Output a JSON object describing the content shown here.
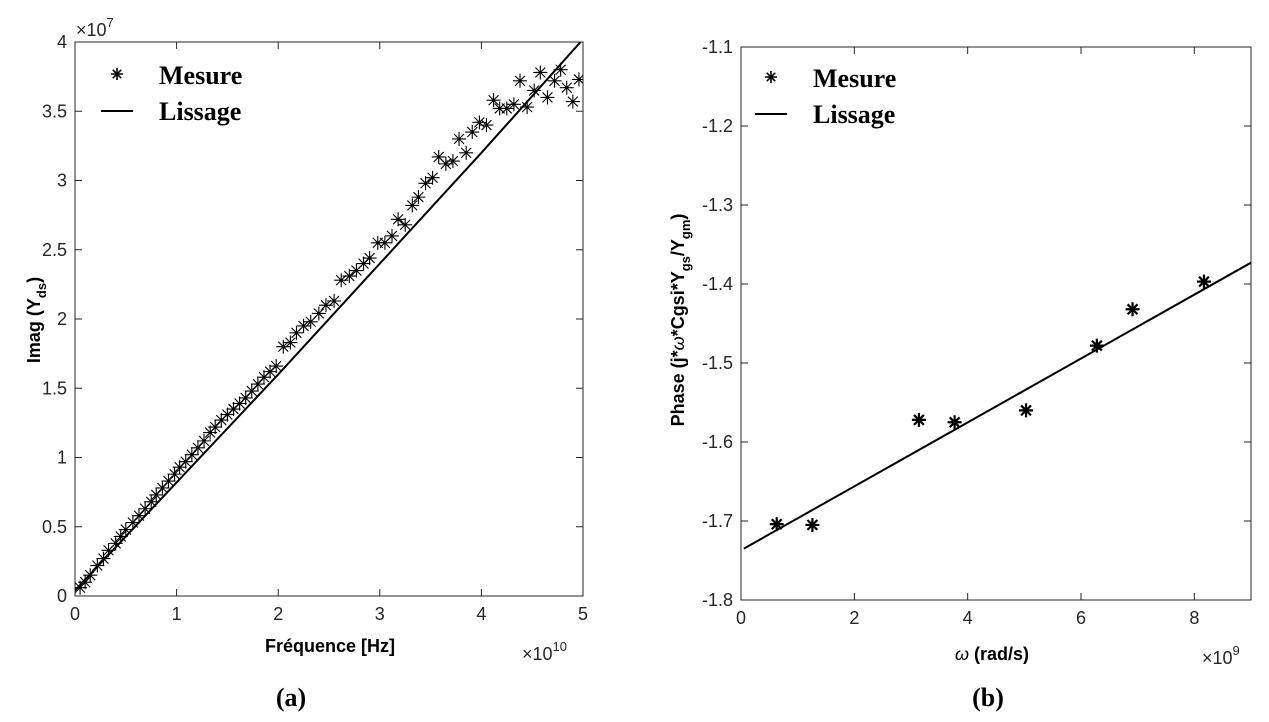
{
  "chart_data": [
    {
      "type": "scatter",
      "panel_label": "(a)",
      "xlabel": "Fréquence    [Hz]",
      "ylabel_main": "Imag (Y",
      "ylabel_sub": "ds",
      "ylabel_end": ")",
      "x_multiplier": {
        "base": "×10",
        "exp": "10"
      },
      "y_multiplier": {
        "base": "×10",
        "exp": "7"
      },
      "xlim": [
        0,
        5
      ],
      "ylim": [
        0,
        4
      ],
      "xticks": [
        0,
        1,
        2,
        3,
        4,
        5
      ],
      "yticks": [
        0,
        0.5,
        1,
        1.5,
        2,
        2.5,
        3,
        3.5,
        4
      ],
      "xtick_labels": [
        "0",
        "1",
        "2",
        "3",
        "4",
        "5"
      ],
      "ytick_labels": [
        "0",
        "0.5",
        "1",
        "1.5",
        "2",
        "2.5",
        "3",
        "3.5",
        "4"
      ],
      "legend": {
        "position": "top-left",
        "entries": [
          "Mesure",
          "Lissage"
        ]
      },
      "series": [
        {
          "name": "Mesure",
          "style": "markers",
          "x": [
            0.05,
            0.1,
            0.15,
            0.22,
            0.28,
            0.33,
            0.4,
            0.45,
            0.5,
            0.57,
            0.63,
            0.69,
            0.75,
            0.8,
            0.86,
            0.92,
            0.98,
            1.03,
            1.09,
            1.15,
            1.21,
            1.27,
            1.33,
            1.38,
            1.44,
            1.5,
            1.56,
            1.62,
            1.68,
            1.74,
            1.8,
            1.86,
            1.92,
            1.98,
            2.05,
            2.12,
            2.18,
            2.25,
            2.32,
            2.4,
            2.47,
            2.55,
            2.62,
            2.7,
            2.77,
            2.84,
            2.9,
            2.98,
            3.05,
            3.12,
            3.18,
            3.25,
            3.32,
            3.38,
            3.45,
            3.52,
            3.58,
            3.65,
            3.72,
            3.78,
            3.85,
            3.91,
            3.98,
            4.05,
            4.12,
            4.18,
            4.25,
            4.32,
            4.38,
            4.45,
            4.52,
            4.58,
            4.65,
            4.72,
            4.78,
            4.84,
            4.9,
            4.96
          ],
          "y": [
            0.06,
            0.1,
            0.15,
            0.22,
            0.27,
            0.33,
            0.38,
            0.43,
            0.48,
            0.53,
            0.58,
            0.63,
            0.68,
            0.73,
            0.78,
            0.83,
            0.88,
            0.93,
            0.97,
            1.02,
            1.07,
            1.12,
            1.18,
            1.22,
            1.27,
            1.31,
            1.35,
            1.39,
            1.43,
            1.48,
            1.53,
            1.58,
            1.62,
            1.66,
            1.8,
            1.83,
            1.9,
            1.95,
            1.98,
            2.04,
            2.1,
            2.13,
            2.28,
            2.31,
            2.35,
            2.4,
            2.44,
            2.55,
            2.55,
            2.6,
            2.72,
            2.68,
            2.82,
            2.88,
            2.98,
            3.02,
            3.17,
            3.12,
            3.14,
            3.3,
            3.2,
            3.35,
            3.42,
            3.4,
            3.58,
            3.52,
            3.52,
            3.55,
            3.72,
            3.53,
            3.65,
            3.78,
            3.6,
            3.72,
            3.8,
            3.67,
            3.57,
            3.73
          ]
        },
        {
          "name": "Lissage",
          "style": "line",
          "x": [
            0,
            1,
            2,
            3,
            4,
            5
          ],
          "y": [
            0.04,
            0.82,
            1.6,
            2.4,
            3.2,
            4.02
          ]
        }
      ]
    },
    {
      "type": "scatter",
      "panel_label": "(b)",
      "xlabel_symbol": "ω",
      "xlabel_rest": " (rad/s)",
      "ylabel_parts": [
        {
          "t": "Phase (j*",
          "sub": false
        },
        {
          "t": "ω",
          "sub": false
        },
        {
          "t": "*Cgsi*Y",
          "sub": false
        },
        {
          "t": "gs",
          "sub": true
        },
        {
          "t": "/Y",
          "sub": false
        },
        {
          "t": "gm",
          "sub": true
        },
        {
          "t": ")",
          "sub": false
        }
      ],
      "x_multiplier": {
        "base": "×10",
        "exp": "9"
      },
      "xlim": [
        0,
        9
      ],
      "ylim": [
        -1.8,
        -1.1
      ],
      "xticks": [
        0,
        2,
        4,
        6,
        8
      ],
      "yticks": [
        -1.8,
        -1.7,
        -1.6,
        -1.5,
        -1.4,
        -1.3,
        -1.2,
        -1.1
      ],
      "xtick_labels": [
        "0",
        "2",
        "4",
        "6",
        "8"
      ],
      "ytick_labels": [
        "-1.8",
        "-1.7",
        "-1.6",
        "-1.5",
        "-1.4",
        "-1.3",
        "-1.2",
        "-1.1"
      ],
      "legend": {
        "position": "top-left",
        "entries": [
          "Mesure",
          "Lissage"
        ]
      },
      "series": [
        {
          "name": "Mesure",
          "style": "markers",
          "x": [
            0.63,
            1.26,
            3.14,
            3.77,
            5.03,
            6.28,
            6.91,
            8.17
          ],
          "y": [
            -1.704,
            -1.705,
            -1.572,
            -1.575,
            -1.56,
            -1.478,
            -1.432,
            -1.397
          ]
        },
        {
          "name": "Lissage",
          "style": "line",
          "x": [
            0.05,
            9
          ],
          "y": [
            -1.735,
            -1.373
          ]
        }
      ]
    }
  ],
  "colors": {
    "axis": "#262626",
    "data": "#000000",
    "background": "#ffffff"
  }
}
